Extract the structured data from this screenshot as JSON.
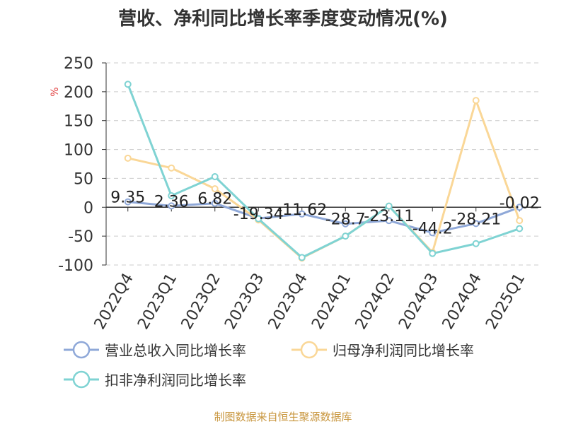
{
  "chart_data": {
    "type": "line",
    "title": "营收、净利同比增长率季度变动情况(%)",
    "ylabel": "%",
    "ylim": [
      -100,
      250
    ],
    "yticks": [
      250,
      200,
      150,
      100,
      50,
      0,
      -50,
      -100
    ],
    "grid": true,
    "legend": "bottom",
    "categories": [
      "2022Q4",
      "2023Q1",
      "2023Q2",
      "2023Q3",
      "2023Q4",
      "2024Q1",
      "2024Q2",
      "2024Q3",
      "2024Q4",
      "2025Q1"
    ],
    "series": [
      {
        "name": "营业总收入同比增长率",
        "color": "#8fa8d8",
        "values": [
          9.35,
          2.36,
          6.82,
          -19.34,
          -11.62,
          -28.7,
          -23.11,
          -44.2,
          -28.21,
          -0.02
        ],
        "labels": [
          "9.35",
          "2.36",
          "6.82",
          "-19.34",
          "-11.62",
          "-28.7",
          "-23.11",
          "-44.2",
          "-28.21",
          "-0.02"
        ]
      },
      {
        "name": "归母净利润同比增长率",
        "color": "#fad797",
        "values": [
          85,
          68,
          32,
          -22,
          -88,
          -50,
          2,
          -78,
          185,
          -23
        ]
      },
      {
        "name": "扣非净利润同比增长率",
        "color": "#7fd3d3",
        "values": [
          213,
          20,
          53,
          -20,
          -87,
          -50,
          2,
          -80,
          -63,
          -37
        ]
      }
    ]
  },
  "source": "制图数据来自恒生聚源数据库"
}
